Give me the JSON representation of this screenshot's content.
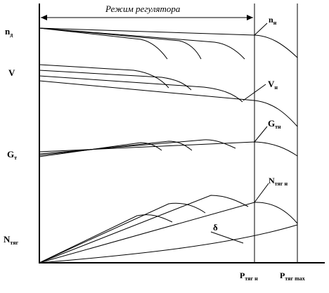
{
  "regime_label": "Режим регулятора",
  "labels": {
    "nd_main": "n",
    "nd_sub": "д",
    "v": "V",
    "gt_main": "G",
    "gt_sub": "т",
    "ntyg_main": "N",
    "ntyg_sub": "тяг",
    "nn_main": "n",
    "nn_sub": "н",
    "vn_main": "V",
    "vn_sub": "н",
    "gtn_main": "G",
    "gtn_sub": "тн",
    "ntygn_main": "N",
    "ntygn_sub": "тяг н",
    "delta": "δ",
    "ptygn_main": "P",
    "ptygn_sub": "тяг н",
    "ptygmax_main": "P",
    "ptygmax_sub": "тяг max"
  }
}
